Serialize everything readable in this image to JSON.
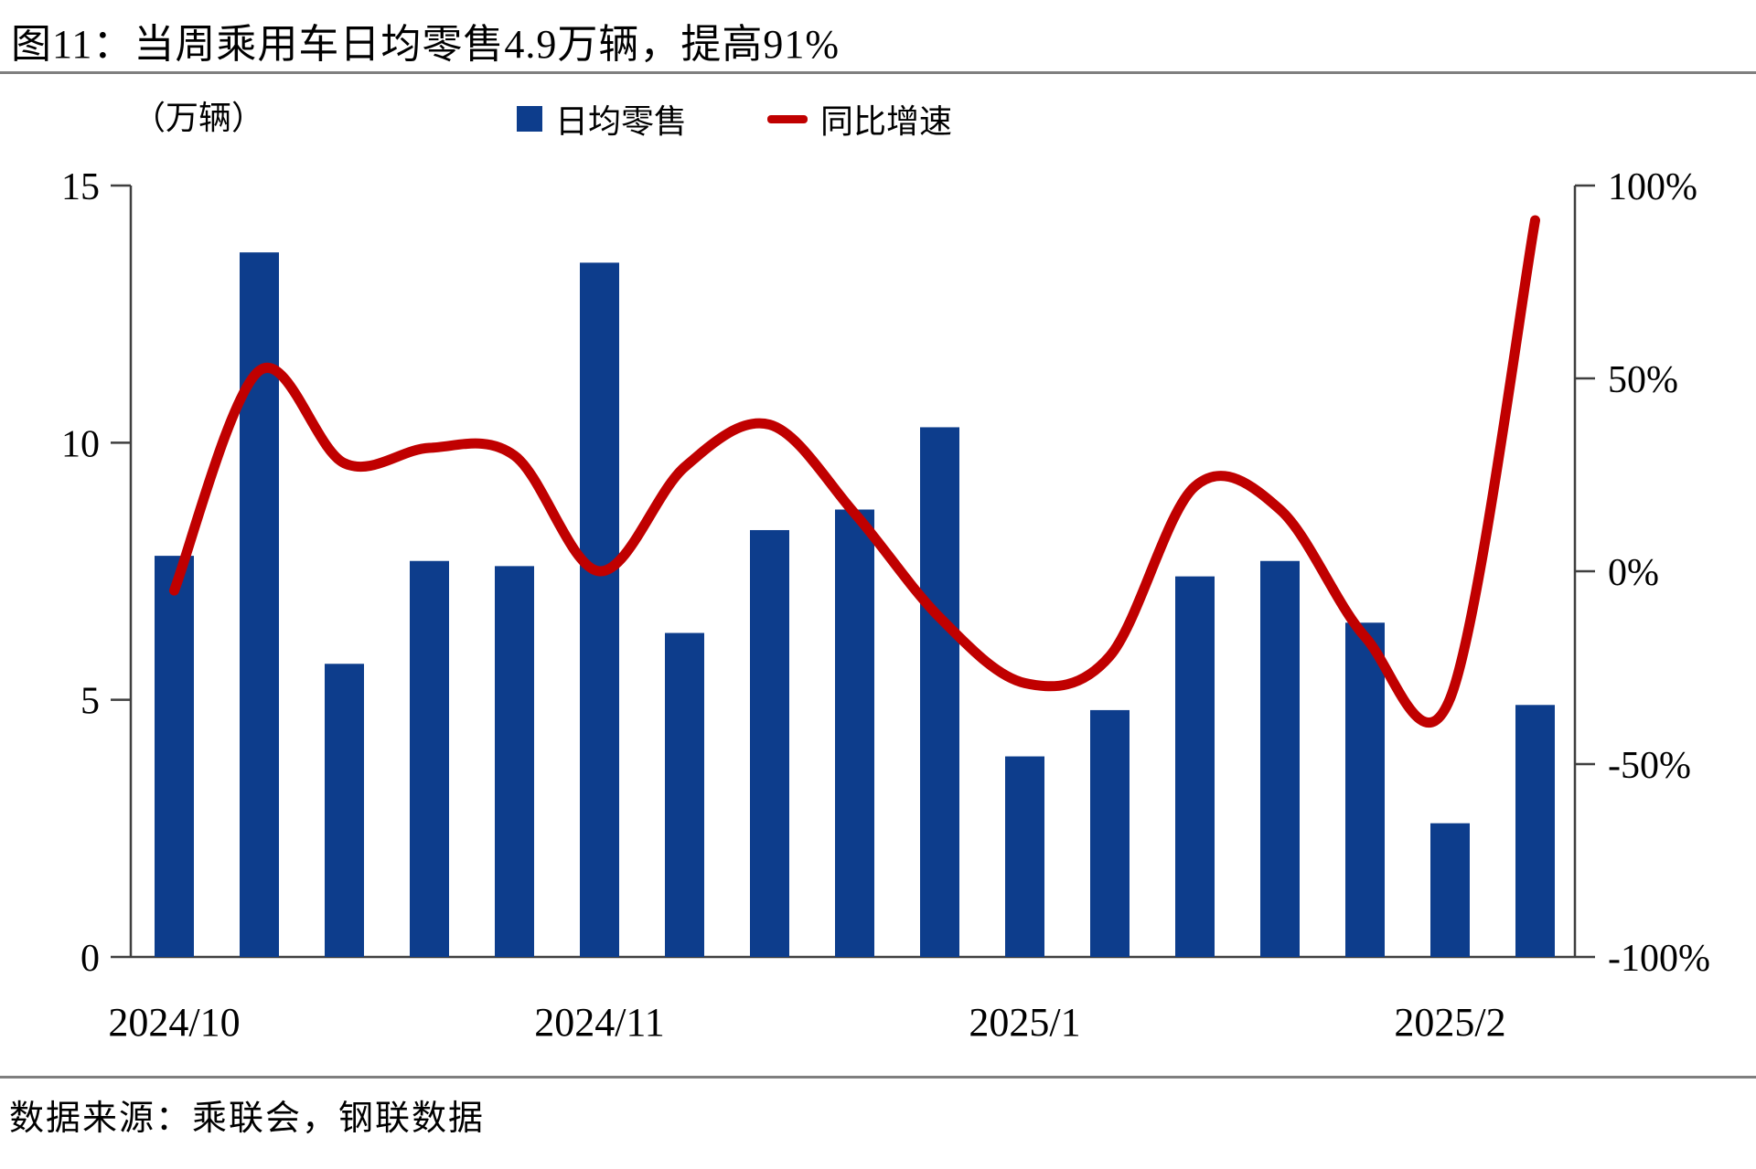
{
  "title": "图11：当周乘用车日均零售4.9万辆，提高91%",
  "unit_label": "（万辆）",
  "legend": {
    "bars": "日均零售",
    "line": "同比增速"
  },
  "footer": {
    "source": "数据来源：乘联会，钢联数据"
  },
  "colors": {
    "bar": "#0d3d8c",
    "line": "#c00000",
    "axis": "#3f3f3f",
    "rule": "#7f7f7f"
  },
  "chart_data": {
    "type": "bar",
    "title": "图11：当周乘用车日均零售4.9万辆，提高91%",
    "categories": [
      "2024/10",
      "",
      "",
      "",
      "",
      "2024/11",
      "",
      "",
      "",
      "",
      "2025/1",
      "",
      "",
      "",
      "",
      "2025/2",
      ""
    ],
    "series": [
      {
        "name": "日均零售",
        "type": "bar",
        "axis": "left",
        "unit": "万辆",
        "values": [
          7.8,
          13.7,
          5.7,
          7.7,
          7.6,
          13.5,
          6.3,
          8.3,
          8.7,
          10.3,
          3.9,
          4.8,
          7.4,
          7.7,
          6.5,
          2.6,
          4.9
        ]
      },
      {
        "name": "同比增速",
        "type": "line",
        "axis": "right",
        "unit": "%",
        "values": [
          -5,
          52,
          28,
          32,
          30,
          0,
          27,
          38,
          15,
          -12,
          -29,
          -22,
          22,
          16,
          -17,
          -33,
          91
        ]
      }
    ],
    "left_axis": {
      "label": "（万辆）",
      "tick_values": [
        0,
        5,
        10,
        15
      ],
      "tick_labels": [
        "0",
        "5",
        "10",
        "15"
      ],
      "range": [
        0,
        15
      ]
    },
    "right_axis": {
      "tick_values": [
        100,
        50,
        0,
        -50,
        -100
      ],
      "tick_labels": [
        "100%",
        "50%",
        "0%",
        "-50%",
        "-100%"
      ],
      "range": [
        -100,
        100
      ]
    },
    "grid": false,
    "legend_position": "top"
  }
}
